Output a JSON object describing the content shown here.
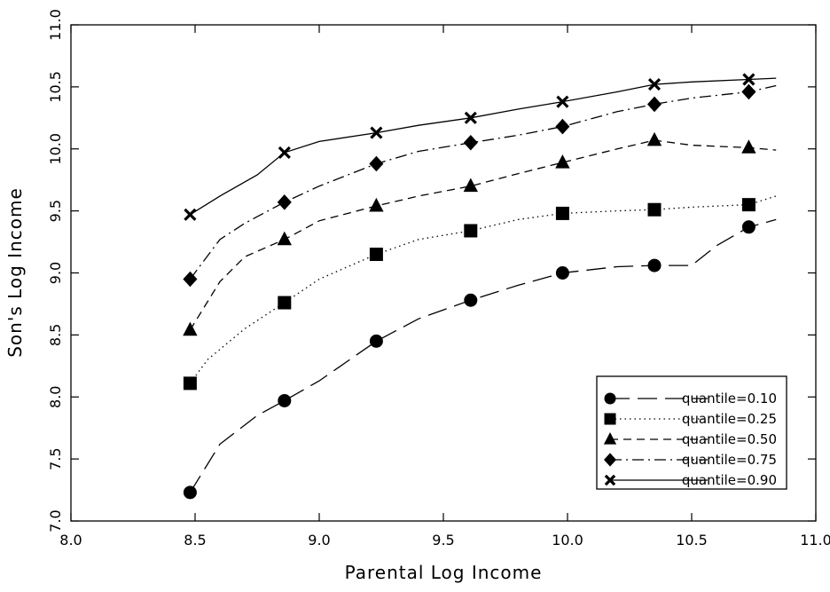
{
  "chart_data": {
    "type": "line",
    "title": "",
    "xlabel": "Parental Log Income",
    "ylabel": "Son's Log Income",
    "xlim": [
      8.0,
      11.0
    ],
    "ylim": [
      7.0,
      11.0
    ],
    "xticks": [
      "8.0",
      "8.5",
      "9.0",
      "9.5",
      "10.0",
      "10.5",
      "11.0"
    ],
    "yticks": [
      "7.0",
      "7.5",
      "8.0",
      "8.5",
      "9.0",
      "9.5",
      "10.0",
      "10.5",
      "11.0"
    ],
    "grid": false,
    "legend_position": "bottom-right",
    "marker_x": [
      8.48,
      8.86,
      9.23,
      9.61,
      9.98,
      10.35,
      10.73
    ],
    "series": [
      {
        "name": "quantile=0.10",
        "marker": "circle",
        "dash": "long-dash",
        "values": [
          7.23,
          7.97,
          8.45,
          8.78,
          9.0,
          9.06,
          9.37
        ],
        "curve": [
          [
            8.48,
            7.23
          ],
          [
            8.6,
            7.62
          ],
          [
            8.75,
            7.85
          ],
          [
            8.86,
            7.97
          ],
          [
            9.0,
            8.13
          ],
          [
            9.23,
            8.45
          ],
          [
            9.4,
            8.63
          ],
          [
            9.61,
            8.78
          ],
          [
            9.8,
            8.9
          ],
          [
            9.98,
            9.0
          ],
          [
            10.2,
            9.05
          ],
          [
            10.35,
            9.06
          ],
          [
            10.5,
            9.06
          ],
          [
            10.6,
            9.22
          ],
          [
            10.73,
            9.37
          ],
          [
            10.84,
            9.43
          ]
        ]
      },
      {
        "name": "quantile=0.25",
        "marker": "square",
        "dash": "dotted",
        "values": [
          8.11,
          8.76,
          9.15,
          9.34,
          9.48,
          9.51,
          9.55
        ],
        "curve": [
          [
            8.48,
            8.11
          ],
          [
            8.55,
            8.3
          ],
          [
            8.7,
            8.55
          ],
          [
            8.86,
            8.76
          ],
          [
            9.0,
            8.95
          ],
          [
            9.23,
            9.15
          ],
          [
            9.4,
            9.27
          ],
          [
            9.61,
            9.34
          ],
          [
            9.8,
            9.43
          ],
          [
            9.98,
            9.48
          ],
          [
            10.2,
            9.5
          ],
          [
            10.35,
            9.51
          ],
          [
            10.5,
            9.53
          ],
          [
            10.73,
            9.55
          ],
          [
            10.84,
            9.62
          ]
        ]
      },
      {
        "name": "quantile=0.50",
        "marker": "triangle",
        "dash": "dashed",
        "values": [
          8.54,
          9.27,
          9.54,
          9.7,
          9.89,
          10.07,
          10.01
        ],
        "curve": [
          [
            8.48,
            8.54
          ],
          [
            8.6,
            8.93
          ],
          [
            8.7,
            9.13
          ],
          [
            8.86,
            9.27
          ],
          [
            9.0,
            9.42
          ],
          [
            9.23,
            9.54
          ],
          [
            9.4,
            9.62
          ],
          [
            9.61,
            9.7
          ],
          [
            9.8,
            9.8
          ],
          [
            9.98,
            9.89
          ],
          [
            10.2,
            10.0
          ],
          [
            10.35,
            10.07
          ],
          [
            10.5,
            10.03
          ],
          [
            10.73,
            10.01
          ],
          [
            10.84,
            9.99
          ]
        ]
      },
      {
        "name": "quantile=0.75",
        "marker": "diamond",
        "dash": "dash-dot",
        "values": [
          8.95,
          9.57,
          9.88,
          10.05,
          10.18,
          10.36,
          10.46
        ],
        "curve": [
          [
            8.48,
            8.95
          ],
          [
            8.6,
            9.27
          ],
          [
            8.7,
            9.4
          ],
          [
            8.86,
            9.57
          ],
          [
            9.0,
            9.7
          ],
          [
            9.23,
            9.88
          ],
          [
            9.4,
            9.98
          ],
          [
            9.61,
            10.05
          ],
          [
            9.8,
            10.11
          ],
          [
            9.98,
            10.18
          ],
          [
            10.2,
            10.3
          ],
          [
            10.35,
            10.36
          ],
          [
            10.5,
            10.41
          ],
          [
            10.73,
            10.46
          ],
          [
            10.84,
            10.51
          ]
        ]
      },
      {
        "name": "quantile=0.90",
        "marker": "x",
        "dash": "solid",
        "values": [
          9.47,
          9.97,
          10.13,
          10.25,
          10.38,
          10.52,
          10.56
        ],
        "curve": [
          [
            8.48,
            9.47
          ],
          [
            8.6,
            9.62
          ],
          [
            8.75,
            9.79
          ],
          [
            8.86,
            9.97
          ],
          [
            9.0,
            10.06
          ],
          [
            9.23,
            10.13
          ],
          [
            9.4,
            10.19
          ],
          [
            9.61,
            10.25
          ],
          [
            9.8,
            10.32
          ],
          [
            9.98,
            10.38
          ],
          [
            10.2,
            10.46
          ],
          [
            10.35,
            10.52
          ],
          [
            10.5,
            10.54
          ],
          [
            10.73,
            10.56
          ],
          [
            10.84,
            10.57
          ]
        ]
      }
    ]
  },
  "colors": {
    "ink": "#000000",
    "background": "#ffffff"
  }
}
